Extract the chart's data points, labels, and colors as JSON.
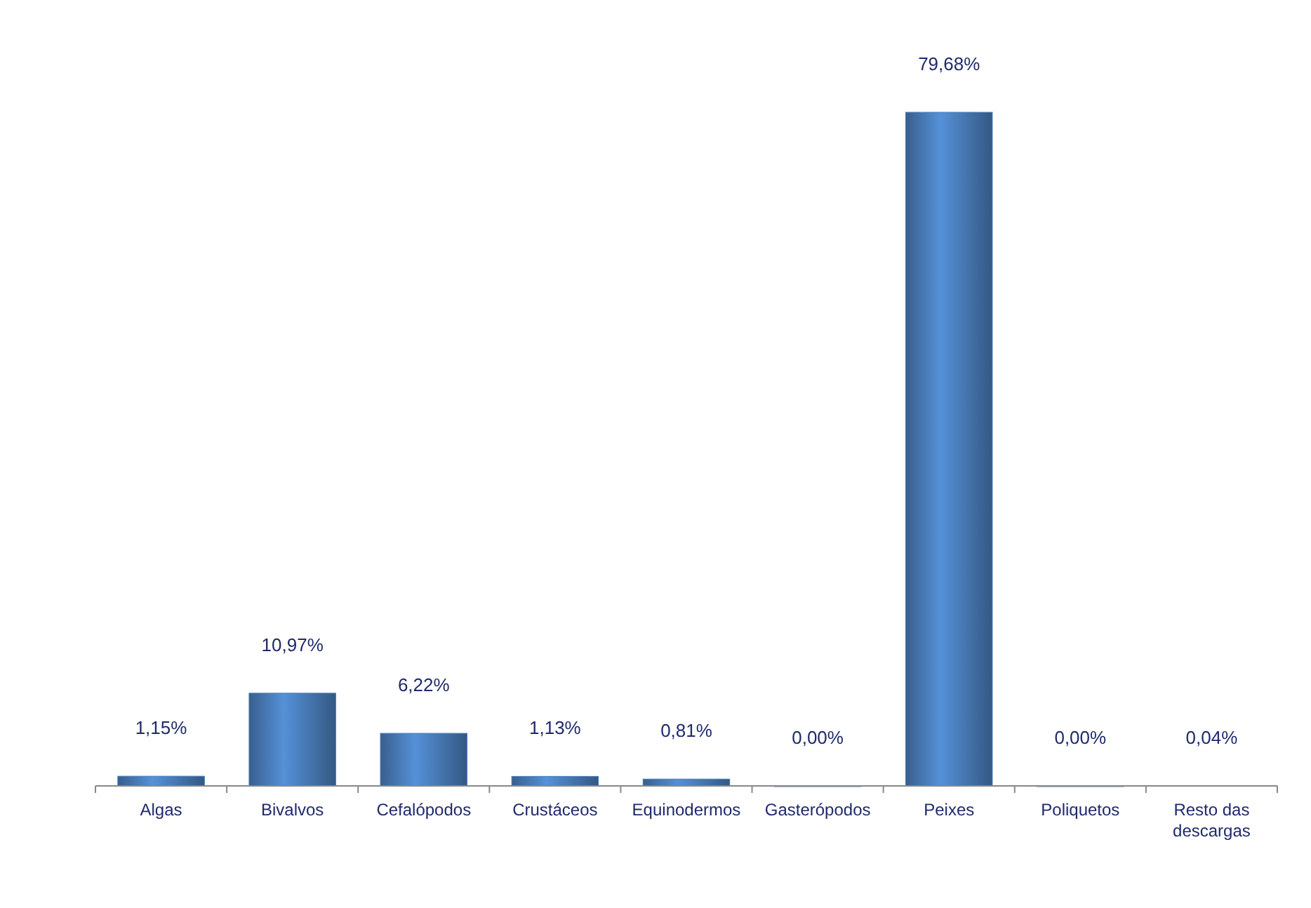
{
  "chart_data": {
    "type": "bar",
    "categories": [
      "Algas",
      "Bivalvos",
      "Cefalópodos",
      "Crustáceos",
      "Equinodermos",
      "Gasterópodos",
      "Peixes",
      "Poliquetos",
      "Resto das descargas"
    ],
    "values": [
      1.15,
      10.97,
      6.22,
      1.13,
      0.81,
      0.0,
      79.68,
      0.0,
      0.04
    ],
    "value_labels": [
      "1,15%",
      "10,97%",
      "6,22%",
      "1,13%",
      "0,81%",
      "0,00%",
      "79,68%",
      "0,00%",
      "0,04%"
    ],
    "color": "#4a7ebb"
  }
}
